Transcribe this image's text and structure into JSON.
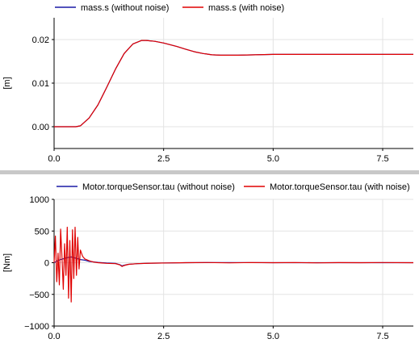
{
  "divider_color": "#c8c8c8",
  "chart_data": [
    {
      "type": "line",
      "legend_position": "top",
      "ylabel": "[m]",
      "xlim": [
        0,
        8.2
      ],
      "ylim": [
        -0.005,
        0.025
      ],
      "grid": true,
      "x_ticks": [
        0,
        2.5,
        5,
        7.5
      ],
      "x_tick_labels": [
        "0.0",
        "2.5",
        "5.0",
        "7.5"
      ],
      "y_ticks": [
        0,
        0.01,
        0.02
      ],
      "y_tick_labels": [
        "0.00",
        "0.01",
        "0.02"
      ],
      "series": [
        {
          "name": "mass.s (without noise)",
          "color": "#1a1aa6",
          "x": [
            0,
            0.5,
            0.6,
            0.8,
            1.0,
            1.2,
            1.4,
            1.6,
            1.8,
            2.0,
            2.1,
            2.3,
            2.5,
            2.8,
            3.0,
            3.2,
            3.4,
            3.6,
            3.8,
            4.2,
            5.0,
            6.0,
            8.2
          ],
          "y": [
            0,
            0,
            0.0002,
            0.002,
            0.005,
            0.009,
            0.0132,
            0.0168,
            0.019,
            0.0198,
            0.0198,
            0.0196,
            0.0192,
            0.0184,
            0.0178,
            0.0172,
            0.0168,
            0.0165,
            0.0164,
            0.0164,
            0.0166,
            0.0166,
            0.0166
          ]
        },
        {
          "name": "mass.s (with noise)",
          "color": "#e00000",
          "x": [
            0,
            0.5,
            0.6,
            0.8,
            1.0,
            1.2,
            1.4,
            1.6,
            1.8,
            2.0,
            2.1,
            2.3,
            2.5,
            2.8,
            3.0,
            3.2,
            3.4,
            3.6,
            3.8,
            4.2,
            5.0,
            6.0,
            8.2
          ],
          "y": [
            0,
            0,
            0.0002,
            0.002,
            0.005,
            0.009,
            0.0132,
            0.0168,
            0.019,
            0.0198,
            0.0198,
            0.0196,
            0.0192,
            0.0184,
            0.0178,
            0.0172,
            0.0168,
            0.0165,
            0.0164,
            0.0164,
            0.0166,
            0.0166,
            0.0166
          ]
        }
      ]
    },
    {
      "type": "line",
      "legend_position": "top",
      "ylabel": "[Nm]",
      "xlim": [
        0,
        8.2
      ],
      "ylim": [
        -1000,
        1000
      ],
      "grid": true,
      "x_ticks": [
        0,
        2.5,
        5,
        7.5
      ],
      "x_tick_labels": [
        "0.0",
        "2.5",
        "5.0",
        "7.5"
      ],
      "y_ticks": [
        -1000,
        -500,
        0,
        500,
        1000
      ],
      "y_tick_labels": [
        "−1000",
        "−500",
        "0",
        "500",
        "1000"
      ],
      "series": [
        {
          "name": "Motor.torqueSensor.tau (without noise)",
          "color": "#1a1aa6",
          "x": [
            0,
            0.1,
            0.2,
            0.3,
            0.4,
            0.5,
            0.6,
            0.7,
            0.8,
            1.0,
            1.2,
            1.4,
            1.5,
            1.55,
            1.6,
            1.7,
            1.9,
            2.2,
            2.6,
            3.0,
            4.0,
            5.0,
            6.0,
            7.0,
            8.2
          ],
          "y": [
            0,
            40,
            60,
            80,
            90,
            70,
            50,
            40,
            20,
            5,
            -5,
            -10,
            -30,
            -50,
            -40,
            -25,
            -15,
            -8,
            -4,
            0,
            2,
            0,
            0,
            0,
            0
          ]
        },
        {
          "name": "Motor.torqueSensor.tau (with noise)",
          "color": "#e00000",
          "x": [
            0,
            0.03,
            0.06,
            0.09,
            0.12,
            0.15,
            0.18,
            0.21,
            0.24,
            0.27,
            0.3,
            0.33,
            0.36,
            0.39,
            0.42,
            0.45,
            0.48,
            0.51,
            0.54,
            0.57,
            0.6,
            0.65,
            0.7,
            0.8,
            0.9,
            1.0,
            1.2,
            1.4,
            1.5,
            1.55,
            1.6,
            1.7,
            1.9,
            2.2,
            2.6,
            3.0,
            3.5,
            4.0,
            4.5,
            5.0,
            5.5,
            6.0,
            6.5,
            7.0,
            7.5,
            8.2
          ],
          "y": [
            0,
            420,
            -300,
            150,
            -350,
            530,
            80,
            -420,
            300,
            -200,
            560,
            -560,
            350,
            -620,
            520,
            -250,
            560,
            -200,
            400,
            -100,
            200,
            100,
            60,
            30,
            10,
            0,
            -10,
            -15,
            -35,
            -60,
            -45,
            -25,
            -15,
            -8,
            -4,
            0,
            3,
            -2,
            2,
            0,
            3,
            -2,
            1,
            0,
            2,
            0
          ]
        }
      ]
    }
  ]
}
